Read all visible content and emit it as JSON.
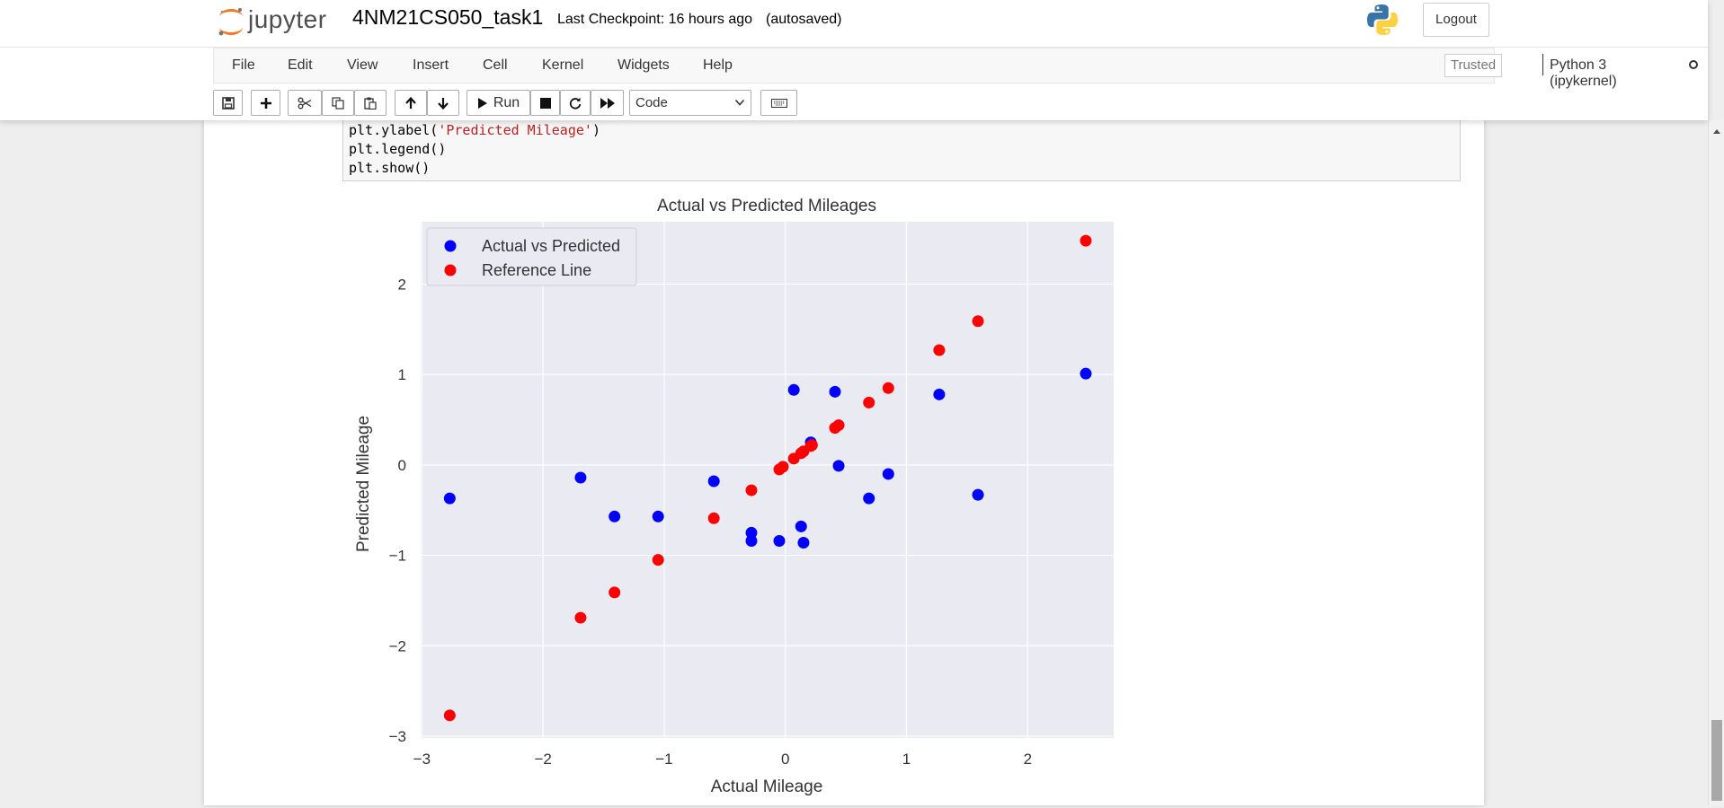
{
  "header": {
    "logo_text": "jupyter",
    "notebook_title": "4NM21CS050_task1",
    "checkpoint_text": "Last Checkpoint: 16 hours ago",
    "autosave_status": "(autosaved)",
    "logout_label": "Logout"
  },
  "menubar": {
    "items": [
      "File",
      "Edit",
      "View",
      "Insert",
      "Cell",
      "Kernel",
      "Widgets",
      "Help"
    ],
    "trusted_label": "Trusted",
    "kernel_name": "Python 3 (ipykernel)"
  },
  "toolbar": {
    "run_label": "Run",
    "cell_type": "Code",
    "cell_type_options": [
      "Code"
    ],
    "icons": [
      "save-icon",
      "plus-icon",
      "scissors-icon",
      "copy-icon",
      "paste-icon",
      "arrow-up-icon",
      "arrow-down-icon",
      "play-icon",
      "stop-icon",
      "restart-icon",
      "fast-forward-icon",
      "keyboard-icon"
    ]
  },
  "cell": {
    "code_lines": [
      {
        "pre": "plt.ylabel(",
        "str": "'Predicted Mileage'",
        "post": ")"
      },
      {
        "pre": "plt.legend()",
        "str": "",
        "post": ""
      },
      {
        "pre": "plt.show()",
        "str": "",
        "post": ""
      }
    ]
  },
  "colors": {
    "actual_series": "#0000ff",
    "reference_series": "#ff0000",
    "plot_background": "#eaeaf2",
    "grid": "#ffffff"
  },
  "chart_data": {
    "type": "scatter",
    "title": "Actual vs Predicted Mileages",
    "xlabel": "Actual Mileage",
    "ylabel": "Predicted Mileage",
    "xlim": [
      -3.01,
      2.71
    ],
    "ylim": [
      -3.02,
      2.69
    ],
    "x_ticks": [
      -3,
      -2,
      -1,
      0,
      1,
      2
    ],
    "y_ticks": [
      -3,
      -2,
      -1,
      0,
      1,
      2
    ],
    "x_tick_labels": [
      "−3",
      "−2",
      "−1",
      "0",
      "1",
      "2"
    ],
    "y_tick_labels": [
      "−3",
      "−2",
      "−1",
      "0",
      "1",
      "2"
    ],
    "grid": true,
    "legend_position": "top-left",
    "series": [
      {
        "name": "Actual vs Predicted",
        "color": "#0000ff",
        "x": [
          -2.77,
          -1.69,
          -1.41,
          -1.05,
          -0.59,
          -0.28,
          -0.28,
          -0.05,
          0.07,
          0.13,
          0.15,
          0.21,
          0.41,
          0.44,
          0.69,
          0.85,
          1.27,
          1.59,
          2.48
        ],
        "y": [
          -0.37,
          -0.14,
          -0.57,
          -0.57,
          -0.18,
          -0.75,
          -0.84,
          -0.84,
          0.83,
          -0.68,
          -0.86,
          0.25,
          0.81,
          -0.01,
          -0.37,
          -0.1,
          0.78,
          -0.33,
          1.01
        ]
      },
      {
        "name": "Reference Line",
        "color": "#ff0000",
        "x": [
          -2.77,
          -1.69,
          -1.41,
          -1.05,
          -0.59,
          -0.28,
          -0.05,
          -0.02,
          0.07,
          0.13,
          0.15,
          0.21,
          0.22,
          0.41,
          0.44,
          0.69,
          0.85,
          1.27,
          1.59,
          2.48
        ],
        "y": [
          -2.77,
          -1.69,
          -1.41,
          -1.05,
          -0.59,
          -0.28,
          -0.05,
          -0.02,
          0.07,
          0.13,
          0.15,
          0.21,
          0.22,
          0.41,
          0.44,
          0.69,
          0.85,
          1.27,
          1.59,
          2.48
        ]
      }
    ]
  }
}
